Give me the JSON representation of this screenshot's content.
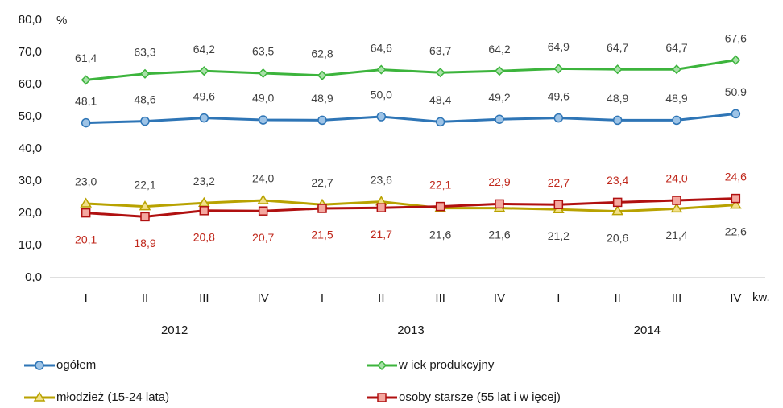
{
  "chart_data": {
    "type": "line",
    "y_unit": "%",
    "x_unit": "kw.",
    "categories": [
      "I",
      "II",
      "III",
      "IV",
      "I",
      "II",
      "III",
      "IV",
      "I",
      "II",
      "III",
      "IV"
    ],
    "year_groups": [
      "2012",
      "2013",
      "2014"
    ],
    "ylim": [
      0,
      80
    ],
    "yticks": [
      {
        "value": 0,
        "label": "0,0"
      },
      {
        "value": 10,
        "label": "10,0"
      },
      {
        "value": 20,
        "label": "20,0"
      },
      {
        "value": 30,
        "label": "30,0"
      },
      {
        "value": 40,
        "label": "40,0"
      },
      {
        "value": 50,
        "label": "50,0"
      },
      {
        "value": 60,
        "label": "60,0"
      },
      {
        "value": 70,
        "label": "70,0"
      },
      {
        "value": 80,
        "label": "80,0"
      }
    ],
    "series": [
      {
        "name": "ogółem",
        "color": "#2e75b6",
        "marker": "circle",
        "marker_fill": "#9dc3e6",
        "label_color": "#404040",
        "values": [
          48.1,
          48.6,
          49.6,
          49.0,
          48.9,
          50.0,
          48.4,
          49.2,
          49.6,
          48.9,
          48.9,
          50.9
        ],
        "value_labels": [
          "48,1",
          "48,6",
          "49,6",
          "49,0",
          "48,9",
          "50,0",
          "48,4",
          "49,2",
          "49,6",
          "48,9",
          "48,9",
          "50,9"
        ]
      },
      {
        "name": "w iek produkcyjny",
        "color": "#3cb43c",
        "marker": "diamond",
        "marker_fill": "#a9e0a9",
        "label_color": "#404040",
        "values": [
          61.4,
          63.3,
          64.2,
          63.5,
          62.8,
          64.6,
          63.7,
          64.2,
          64.9,
          64.7,
          64.7,
          67.6
        ],
        "value_labels": [
          "61,4",
          "63,3",
          "64,2",
          "63,5",
          "62,8",
          "64,6",
          "63,7",
          "64,2",
          "64,9",
          "64,7",
          "64,7",
          "67,6"
        ]
      },
      {
        "name": "młodzież (15-24 lata)",
        "color": "#b8a200",
        "marker": "triangle",
        "marker_fill": "#f2e08a",
        "label_color": "#404040",
        "values": [
          23.0,
          22.1,
          23.2,
          24.0,
          22.7,
          23.6,
          21.6,
          21.6,
          21.2,
          20.6,
          21.4,
          22.6
        ],
        "value_labels": [
          "23,0",
          "22,1",
          "23,2",
          "24,0",
          "22,7",
          "23,6",
          "21,6",
          "21,6",
          "21,2",
          "20,6",
          "21,4",
          "22,6"
        ]
      },
      {
        "name": "osoby starsze (55 lat i w ięcej)",
        "color": "#b01010",
        "marker": "square",
        "marker_fill": "#f4a8a0",
        "label_color": "#c0281c",
        "values": [
          20.1,
          18.9,
          20.8,
          20.7,
          21.5,
          21.7,
          22.1,
          22.9,
          22.7,
          23.4,
          24.0,
          24.6
        ],
        "value_labels": [
          "20,1",
          "18,9",
          "20,8",
          "20,7",
          "21,5",
          "21,7",
          "22,1",
          "22,9",
          "22,7",
          "23,4",
          "24,0",
          "24,6"
        ]
      }
    ]
  }
}
